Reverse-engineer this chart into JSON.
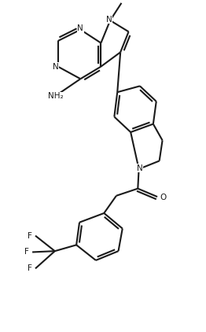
{
  "background_color": "#ffffff",
  "line_color": "#1a1a1a",
  "line_width": 1.5,
  "figsize": [
    2.62,
    4.22
  ],
  "dpi": 100,
  "xlim": [
    0,
    10
  ],
  "ylim": [
    0,
    16
  ]
}
